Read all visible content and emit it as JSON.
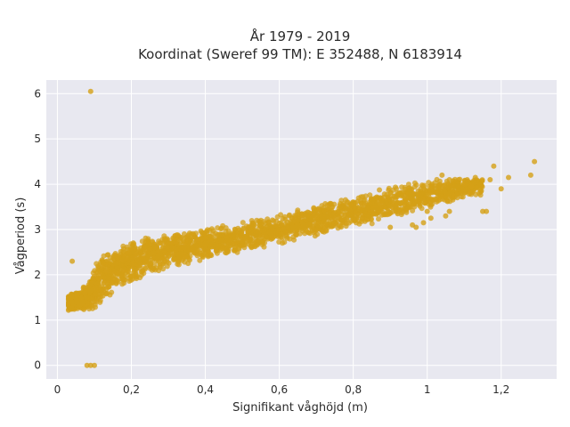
{
  "chart_data": {
    "type": "scatter",
    "title": [
      "År 1979 - 2019",
      "Koordinat (Sweref 99 TM): E 352488, N 6183914"
    ],
    "xlabel": "Signifikant våghöjd (m)",
    "ylabel": "Vågperiod (s)",
    "xlim": [
      -0.03,
      1.35
    ],
    "ylim": [
      -0.3,
      6.3
    ],
    "xticks": [
      0,
      0.2,
      0.4,
      0.6,
      0.8,
      1,
      1.2
    ],
    "xticklabels": [
      "0",
      "0,2",
      "0,4",
      "0,6",
      "0,8",
      "1",
      "1,2"
    ],
    "yticks": [
      0,
      1,
      2,
      3,
      4,
      5,
      6
    ],
    "yticklabels": [
      "0",
      "1",
      "2",
      "3",
      "4",
      "5",
      "6"
    ],
    "grid": true,
    "colors": {
      "point": "#d4a017",
      "plot_background": "#e8e8f0",
      "grid": "#ffffff"
    },
    "dense_band": {
      "x": [
        0.03,
        0.05,
        0.08,
        0.1,
        0.12,
        0.15,
        0.18,
        0.2,
        0.25,
        0.3,
        0.35,
        0.4,
        0.45,
        0.5,
        0.55,
        0.6,
        0.65,
        0.7,
        0.75,
        0.8,
        0.85,
        0.9,
        0.95,
        1.0,
        1.05,
        1.1,
        1.15
      ],
      "y_low": [
        1.2,
        1.2,
        1.2,
        1.2,
        1.3,
        1.6,
        1.7,
        1.8,
        2.0,
        2.1,
        2.2,
        2.3,
        2.4,
        2.5,
        2.6,
        2.65,
        2.75,
        2.85,
        2.95,
        3.05,
        3.1,
        3.25,
        3.35,
        3.45,
        3.55,
        3.65,
        3.75
      ],
      "y_high": [
        1.6,
        1.65,
        1.8,
        2.2,
        2.45,
        2.6,
        2.7,
        2.75,
        2.85,
        2.95,
        3.0,
        3.05,
        3.1,
        3.2,
        3.25,
        3.35,
        3.45,
        3.55,
        3.65,
        3.75,
        3.85,
        3.95,
        4.05,
        4.1,
        4.15,
        4.15,
        4.15
      ]
    },
    "outliers": [
      {
        "x": 0.09,
        "y": 6.05
      },
      {
        "x": 0.04,
        "y": 2.3
      },
      {
        "x": 0.08,
        "y": 0.0
      },
      {
        "x": 0.09,
        "y": 0.0
      },
      {
        "x": 0.1,
        "y": 0.0
      },
      {
        "x": 1.29,
        "y": 4.5
      },
      {
        "x": 1.28,
        "y": 4.2
      },
      {
        "x": 1.18,
        "y": 4.4
      },
      {
        "x": 1.2,
        "y": 3.9
      },
      {
        "x": 1.22,
        "y": 4.15
      },
      {
        "x": 1.05,
        "y": 3.3
      },
      {
        "x": 1.06,
        "y": 3.4
      },
      {
        "x": 1.0,
        "y": 3.4
      },
      {
        "x": 1.01,
        "y": 3.25
      },
      {
        "x": 0.96,
        "y": 3.1
      },
      {
        "x": 0.97,
        "y": 3.05
      },
      {
        "x": 0.9,
        "y": 3.05
      },
      {
        "x": 0.93,
        "y": 3.45
      },
      {
        "x": 0.92,
        "y": 3.35
      },
      {
        "x": 0.99,
        "y": 3.15
      },
      {
        "x": 1.15,
        "y": 3.4
      },
      {
        "x": 1.16,
        "y": 3.4
      },
      {
        "x": 1.1,
        "y": 4.0
      },
      {
        "x": 1.12,
        "y": 3.95
      },
      {
        "x": 1.04,
        "y": 4.2
      },
      {
        "x": 1.06,
        "y": 4.1
      },
      {
        "x": 1.13,
        "y": 4.15
      },
      {
        "x": 1.17,
        "y": 4.1
      }
    ]
  }
}
